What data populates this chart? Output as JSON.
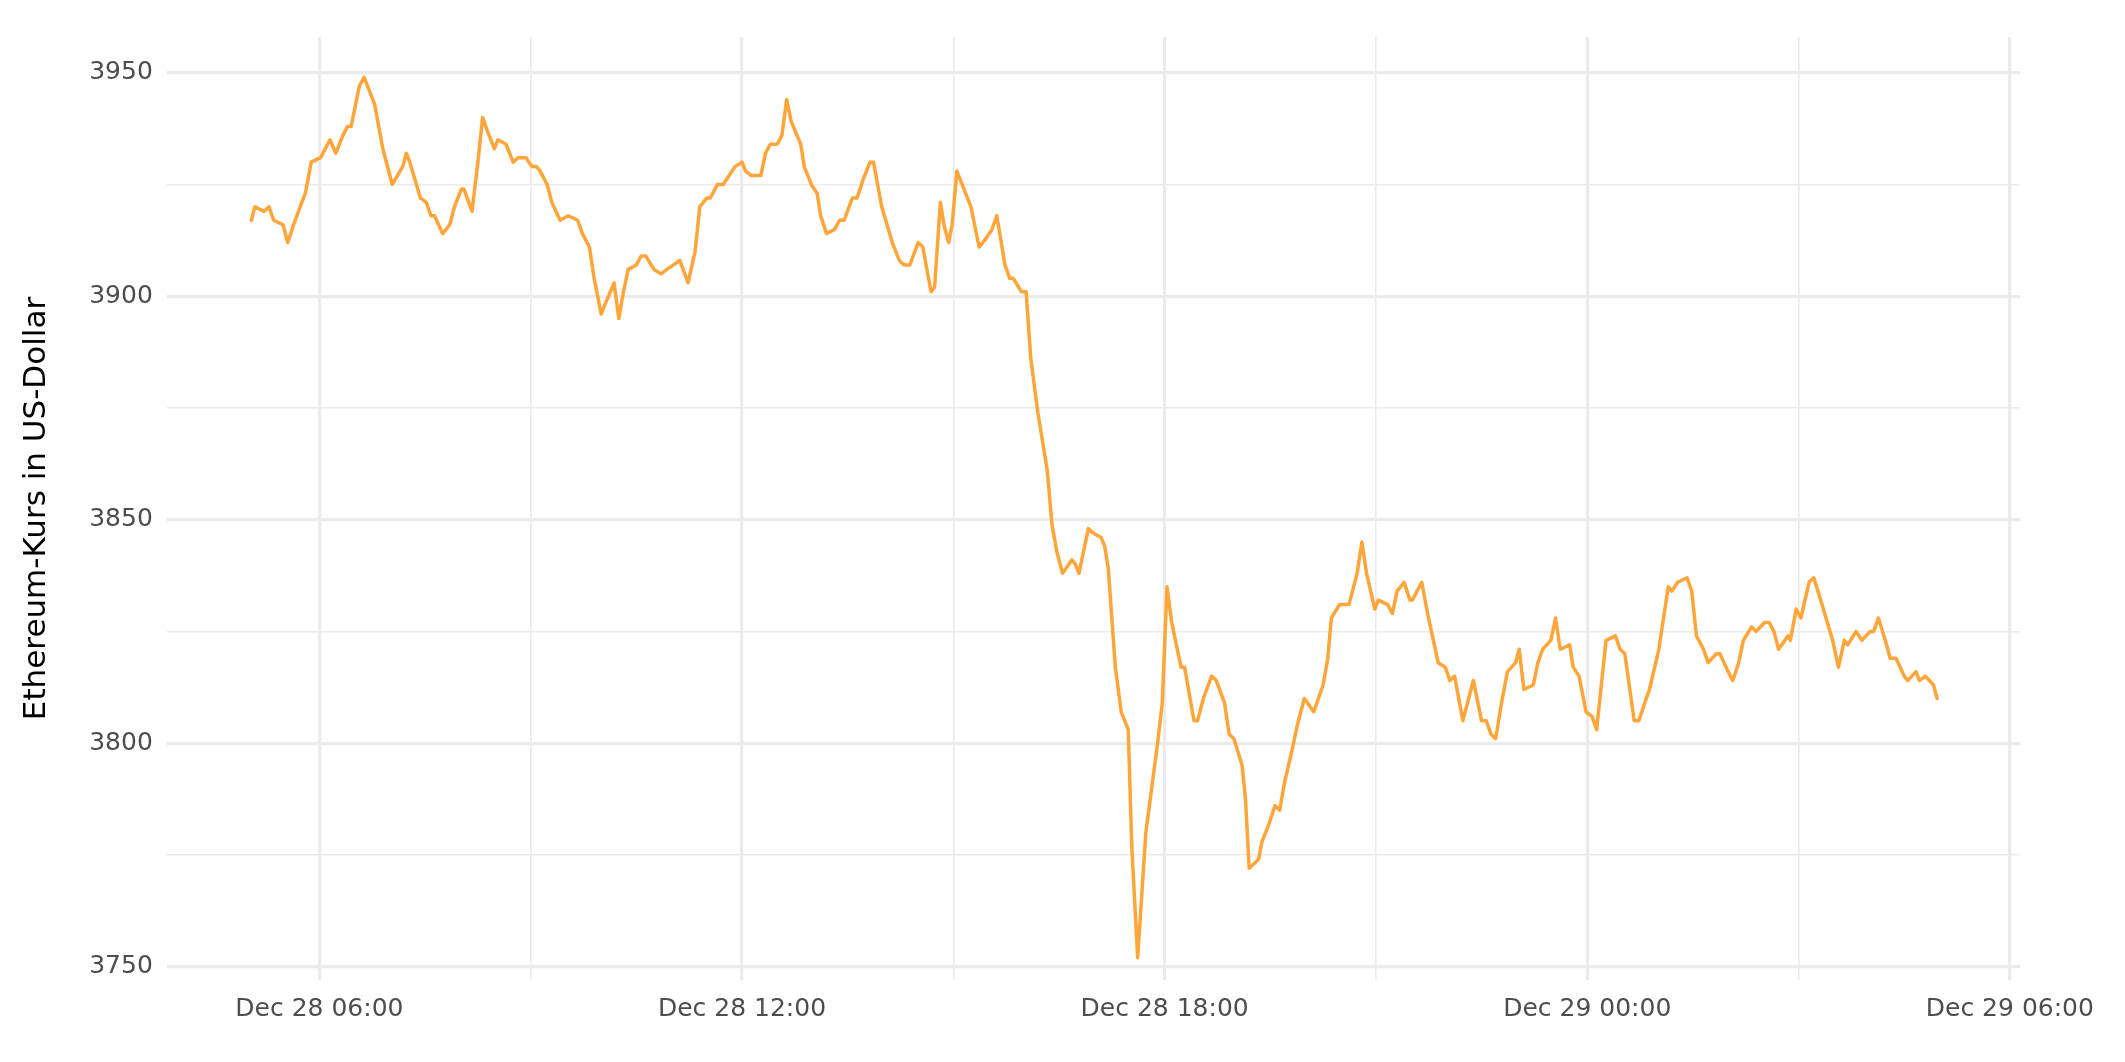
{
  "chart_data": {
    "type": "line",
    "ylabel": "Ethereum-Kurs in US-Dollar",
    "x": [
      "--12-28T05:02",
      "--12-28T05:05",
      "--12-28T05:13",
      "--12-28T05:17",
      "--12-28T05:21",
      "--12-28T05:29",
      "--12-28T05:33",
      "--12-28T05:38",
      "--12-28T05:45",
      "--12-28T05:48",
      "--12-28T05:53",
      "--12-28T06:01",
      "--12-28T06:09",
      "--12-28T06:14",
      "--12-28T06:20",
      "--12-28T06:24",
      "--12-28T06:27",
      "--12-28T06:34",
      "--12-28T06:38",
      "--12-28T06:44",
      "--12-28T06:47",
      "--12-28T06:54",
      "--12-28T07:02",
      "--12-28T07:11",
      "--12-28T07:14",
      "--12-28T07:17",
      "--12-28T07:26",
      "--12-28T07:31",
      "--12-28T07:35",
      "--12-28T07:38",
      "--12-28T07:45",
      "--12-28T07:51",
      "--12-28T07:55",
      "--12-28T08:01",
      "--12-28T08:03",
      "--12-28T08:10",
      "--12-28T08:15",
      "--12-28T08:19",
      "--12-28T08:23",
      "--12-28T08:29",
      "--12-28T08:32",
      "--12-28T08:39",
      "--12-28T08:45",
      "--12-28T08:49",
      "--12-28T08:56",
      "--12-28T09:01",
      "--12-28T09:05",
      "--12-28T09:08",
      "--12-28T09:14",
      "--12-28T09:18",
      "--12-28T09:25",
      "--12-28T09:32",
      "--12-28T09:40",
      "--12-28T09:44",
      "--12-28T09:50",
      "--12-28T09:54",
      "--12-28T10:00",
      "--12-28T10:03",
      "--12-28T10:11",
      "--12-28T10:15",
      "--12-28T10:19",
      "--12-28T10:23",
      "--12-28T10:30",
      "--12-28T10:34",
      "--12-28T10:38",
      "--12-28T10:45",
      "--12-28T10:51",
      "--12-28T10:56",
      "--12-28T11:07",
      "--12-28T11:14",
      "--12-28T11:20",
      "--12-28T11:24",
      "--12-28T11:30",
      "--12-28T11:33",
      "--12-28T11:39",
      "--12-28T11:44",
      "--12-28T11:49",
      "--12-28T11:54",
      "--12-28T12:00",
      "--12-28T12:03",
      "--12-28T12:08",
      "--12-28T12:16",
      "--12-28T12:20",
      "--12-28T12:24",
      "--12-28T12:30",
      "--12-28T12:34",
      "--12-28T12:38",
      "--12-28T12:42",
      "--12-28T12:50",
      "--12-28T12:53",
      "--12-28T12:59",
      "--12-28T13:04",
      "--12-28T13:07",
      "--12-28T13:12",
      "--12-28T13:19",
      "--12-28T13:23",
      "--12-28T13:27",
      "--12-28T13:34",
      "--12-28T13:38",
      "--12-28T13:43",
      "--12-28T13:49",
      "--12-28T13:52",
      "--12-28T13:59",
      "--12-28T14:08",
      "--12-28T14:14",
      "--12-28T14:18",
      "--12-28T14:23",
      "--12-28T14:30",
      "--12-28T14:34",
      "--12-28T14:41",
      "--12-28T14:44",
      "--12-28T14:49",
      "--12-28T14:52",
      "--12-28T14:56",
      "--12-28T14:59",
      "--12-28T15:03",
      "--12-28T15:09",
      "--12-28T15:15",
      "--12-28T15:22",
      "--12-28T15:28",
      "--12-28T15:33",
      "--12-28T15:37",
      "--12-28T15:44",
      "--12-28T15:48",
      "--12-28T15:51",
      "--12-28T15:58",
      "--12-28T16:02",
      "--12-28T16:06",
      "--12-28T16:12",
      "--12-28T16:20",
      "--12-28T16:24",
      "--12-28T16:28",
      "--12-28T16:33",
      "--12-28T16:41",
      "--12-28T16:44",
      "--12-28T16:47",
      "--12-28T16:55",
      "--12-28T16:59",
      "--12-28T17:06",
      "--12-28T17:09",
      "--12-28T17:12",
      "--12-28T17:18",
      "--12-28T17:23",
      "--12-28T17:29",
      "--12-28T17:32",
      "--12-28T17:37",
      "--12-28T17:44",
      "--12-28T17:54",
      "--12-28T17:58",
      "--12-28T18:02",
      "--12-28T18:06",
      "--12-28T18:14",
      "--12-28T18:17",
      "--12-28T18:25",
      "--12-28T18:28",
      "--12-28T18:33",
      "--12-28T18:40",
      "--12-28T18:44",
      "--12-28T18:51",
      "--12-28T18:55",
      "--12-28T18:59",
      "--12-28T19:06",
      "--12-28T19:09",
      "--12-28T19:12",
      "--12-28T19:20",
      "--12-28T19:23",
      "--12-28T19:29",
      "--12-28T19:34",
      "--12-28T19:38",
      "--12-28T19:42",
      "--12-28T19:49",
      "--12-28T19:53",
      "--12-28T19:59",
      "--12-28T20:07",
      "--12-28T20:15",
      "--12-28T20:19",
      "--12-28T20:22",
      "--12-28T20:29",
      "--12-28T20:32",
      "--12-28T20:37",
      "--12-28T20:44",
      "--12-28T20:48",
      "--12-28T20:52",
      "--12-28T20:59",
      "--12-28T21:02",
      "--12-28T21:10",
      "--12-28T21:14",
      "--12-28T21:18",
      "--12-28T21:24",
      "--12-28T21:29",
      "--12-28T21:31",
      "--12-28T21:39",
      "--12-28T21:44",
      "--12-28T21:53",
      "--12-28T21:59",
      "--12-28T22:03",
      "--12-28T22:07",
      "--12-28T22:14",
      "--12-28T22:23",
      "--12-28T22:30",
      "--12-28T22:34",
      "--12-28T22:38",
      "--12-28T22:42",
      "--12-28T22:47",
      "--12-28T22:52",
      "--12-28T22:59",
      "--12-28T23:02",
      "--12-28T23:06",
      "--12-28T23:14",
      "--12-28T23:18",
      "--12-28T23:22",
      "--12-28T23:29",
      "--12-28T23:33",
      "--12-28T23:37",
      "--12-28T23:45",
      "--12-28T23:48",
      "--12-28T23:53",
      "--12-28T23:59",
      "--12-29T00:04",
      "--12-29T00:08",
      "--12-29T00:16",
      "--12-29T00:24",
      "--12-29T00:28",
      "--12-29T00:32",
      "--12-29T00:40",
      "--12-29T00:44",
      "--12-29T00:49",
      "--12-29T00:53",
      "--12-29T01:01",
      "--12-29T01:09",
      "--12-29T01:12",
      "--12-29T01:17",
      "--12-29T01:25",
      "--12-29T01:29",
      "--12-29T01:33",
      "--12-29T01:39",
      "--12-29T01:43",
      "--12-29T01:50",
      "--12-29T01:53",
      "--12-29T02:00",
      "--12-29T02:04",
      "--12-29T02:09",
      "--12-29T02:13",
      "--12-29T02:20",
      "--12-29T02:24",
      "--12-29T02:31",
      "--12-29T02:35",
      "--12-29T02:39",
      "--12-29T02:43",
      "--12-29T02:51",
      "--12-29T02:53",
      "--12-29T02:58",
      "--12-29T03:02",
      "--12-29T03:09",
      "--12-29T03:13",
      "--12-29T03:20",
      "--12-29T03:29",
      "--12-29T03:34",
      "--12-29T03:39",
      "--12-29T03:42",
      "--12-29T03:49",
      "--12-29T03:54",
      "--12-29T04:01",
      "--12-29T04:04",
      "--12-29T04:08",
      "--12-29T04:15",
      "--12-29T04:18",
      "--12-29T04:23",
      "--12-29T04:30",
      "--12-29T04:33",
      "--12-29T04:40",
      "--12-29T04:43",
      "--12-29T04:48",
      "--12-29T04:55",
      "--12-29T04:58"
    ],
    "series": [
      {
        "color": "#ffa53a",
        "values": [
          3917,
          3920,
          3919,
          3920,
          3917,
          3916,
          3912,
          3916,
          3921,
          3923,
          3930,
          3931,
          3935,
          3932,
          3936,
          3938,
          3938,
          3947,
          3949,
          3945,
          3943,
          3933,
          3925,
          3929,
          3932,
          3930,
          3922,
          3921,
          3918,
          3918,
          3914,
          3916,
          3920,
          3924,
          3924,
          3919,
          3930,
          3940,
          3937,
          3933,
          3935,
          3934,
          3930,
          3931,
          3931,
          3929,
          3929,
          3928,
          3925,
          3921,
          3917,
          3918,
          3917,
          3914,
          3911,
          3904,
          3896,
          3898,
          3903,
          3895,
          3901,
          3906,
          3907,
          3909,
          3909,
          3906,
          3905,
          3906,
          3908,
          3903,
          3910,
          3920,
          3922,
          3922,
          3925,
          3925,
          3927,
          3929,
          3930,
          3928,
          3927,
          3927,
          3932,
          3934,
          3934,
          3936,
          3944,
          3939,
          3934,
          3929,
          3925,
          3923,
          3918,
          3914,
          3915,
          3917,
          3917,
          3922,
          3922,
          3926,
          3930,
          3930,
          3920,
          3912,
          3908,
          3907,
          3907,
          3912,
          3911,
          3901,
          3902,
          3921,
          3916,
          3912,
          3916,
          3928,
          3924,
          3920,
          3911,
          3913,
          3915,
          3918,
          3907,
          3904,
          3904,
          3901,
          3901,
          3886,
          3874,
          3861,
          3849,
          3843,
          3838,
          3841,
          3840,
          3838,
          3848,
          3847,
          3846,
          3844,
          3839,
          3817,
          3807,
          3803,
          3777,
          3752,
          3780,
          3800,
          3809,
          3835,
          3827,
          3817,
          3817,
          3805,
          3805,
          3810,
          3815,
          3814,
          3809,
          3802,
          3801,
          3795,
          3787,
          3772,
          3774,
          3778,
          3782,
          3786,
          3785,
          3791,
          3799,
          3804,
          3810,
          3807,
          3813,
          3819,
          3828,
          3831,
          3831,
          3831,
          3838,
          3845,
          3838,
          3830,
          3832,
          3831,
          3829,
          3834,
          3836,
          3832,
          3832,
          3836,
          3829,
          3818,
          3817,
          3814,
          3815,
          3805,
          3814,
          3805,
          3805,
          3802,
          3801,
          3809,
          3816,
          3818,
          3821,
          3812,
          3813,
          3818,
          3821,
          3823,
          3828,
          3821,
          3822,
          3817,
          3815,
          3807,
          3806,
          3803,
          3823,
          3824,
          3821,
          3820,
          3805,
          3805,
          3809,
          3812,
          3821,
          3835,
          3834,
          3836,
          3837,
          3834,
          3824,
          3821,
          3818,
          3820,
          3820,
          3816,
          3814,
          3818,
          3823,
          3826,
          3825,
          3827,
          3827,
          3825,
          3821,
          3824,
          3823,
          3830,
          3828,
          3836,
          3837,
          3831,
          3823,
          3817,
          3823,
          3822,
          3825,
          3823,
          3825,
          3825,
          3828,
          3822,
          3819,
          3819,
          3815,
          3814,
          3816,
          3814,
          3815,
          3813,
          3810
        ]
      }
    ],
    "xlim": [
      "--12-28T03:50",
      "--12-29T06:09"
    ],
    "xticks": [
      {
        "value": "--12-28T06:00",
        "label": "Dec 28 06:00"
      },
      {
        "value": "--12-28T09:00",
        "label": null
      },
      {
        "value": "--12-28T12:00",
        "label": "Dec 28 12:00"
      },
      {
        "value": "--12-28T15:00",
        "label": null
      },
      {
        "value": "--12-28T18:00",
        "label": "Dec 28 18:00"
      },
      {
        "value": "--12-28T21:00",
        "label": null
      },
      {
        "value": "--12-29T00:00",
        "label": "Dec 29 00:00"
      },
      {
        "value": "--12-29T03:00",
        "label": null
      },
      {
        "value": "--12-29T06:00",
        "label": "Dec 29 06:00"
      }
    ],
    "ylim": [
      3747,
      3958
    ],
    "yticks": [
      3750,
      {
        "value": 3775,
        "label": null
      },
      3800,
      {
        "value": 3825,
        "label": null
      },
      3850,
      {
        "value": 3875,
        "label": null
      },
      3900,
      {
        "value": 3925,
        "label": null
      },
      3950
    ],
    "grid": true
  }
}
